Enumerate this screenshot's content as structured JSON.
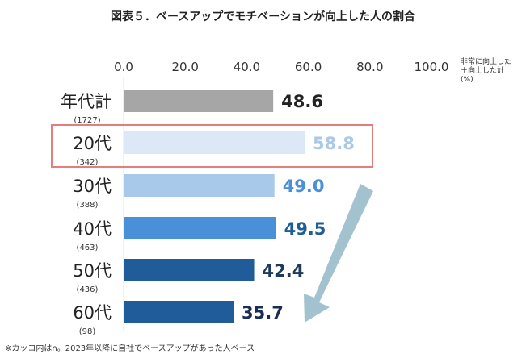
{
  "title": "図表５．ベースアップでモチベーションが向上した人の割合",
  "note": "※カッコ内はn。2023年以降に自社でベースアップがあった人ベース",
  "chart_data": {
    "type": "bar",
    "orientation": "horizontal",
    "title": "図表５．ベースアップでモチベーションが向上した人の割合",
    "unit_label": [
      "非常に向上した",
      "＋向上した計",
      "(%)"
    ],
    "xlim": [
      0,
      100
    ],
    "ticks": [
      "0.0",
      "20.0",
      "40.0",
      "60.0",
      "80.0",
      "100.0"
    ],
    "grid": false,
    "categories": [
      "年代計",
      "20代",
      "30代",
      "40代",
      "50代",
      "60代"
    ],
    "n_labels": [
      "(1727)",
      "(342)",
      "(388)",
      "(463)",
      "(436)",
      "(98)"
    ],
    "values": [
      48.6,
      58.8,
      49.0,
      49.5,
      42.4,
      35.7
    ],
    "value_labels": [
      "48.6",
      "58.8",
      "49.0",
      "49.5",
      "42.4",
      "35.7"
    ],
    "bar_colors": [
      "#a6a6a6",
      "#dce8f5",
      "#a9c9ea",
      "#4a90d9",
      "#1f5c99",
      "#1f5c99"
    ],
    "label_colors": [
      "#222222",
      "#a9c9e6",
      "#4a90d9",
      "#1f5c99",
      "#1f3a5f",
      "#1a2e55"
    ],
    "highlight": {
      "category": "20代",
      "color": "#e06666"
    },
    "annotation": {
      "type": "arrow",
      "direction": "down",
      "from": "30代",
      "to": "60代",
      "color": "#a3c2d0"
    }
  }
}
